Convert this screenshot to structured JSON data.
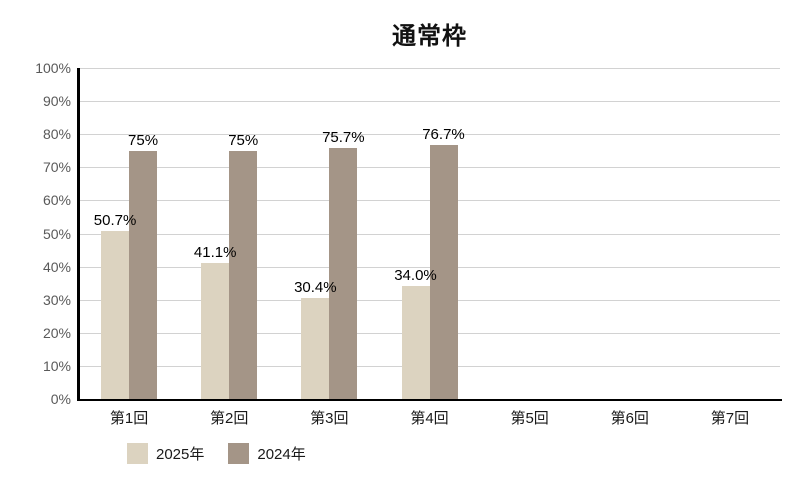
{
  "chart_data": {
    "type": "bar",
    "title": "通常枠",
    "categories": [
      "第1回",
      "第2回",
      "第3回",
      "第4回",
      "第5回",
      "第6回",
      "第7回"
    ],
    "series": [
      {
        "name": "2025年",
        "color": "#dcd3c0",
        "values": [
          50.7,
          41.1,
          30.4,
          34.0,
          null,
          null,
          null
        ],
        "labels": [
          "50.7%",
          "41.1%",
          "30.4%",
          "34.0%",
          "",
          "",
          ""
        ]
      },
      {
        "name": "2024年",
        "color": "#a49587",
        "values": [
          75,
          75,
          75.7,
          76.7,
          null,
          null,
          null
        ],
        "labels": [
          "75%",
          "75%",
          "75.7%",
          "76.7%",
          "",
          "",
          ""
        ]
      }
    ],
    "ylim": [
      0,
      100
    ],
    "yticks": [
      0,
      10,
      20,
      30,
      40,
      50,
      60,
      70,
      80,
      90,
      100
    ],
    "ytick_labels": [
      "0%",
      "10%",
      "20%",
      "30%",
      "40%",
      "50%",
      "60%",
      "70%",
      "80%",
      "90%",
      "100%"
    ],
    "grid": "horizontal",
    "legend_position": "bottom-left"
  },
  "colors": {
    "axis": "#000000",
    "gridline": "#d2d2d2",
    "ytick_text": "#595959",
    "xtick_text": "#1a1a1a",
    "data_label_text": "#000000",
    "background": "#ffffff"
  }
}
